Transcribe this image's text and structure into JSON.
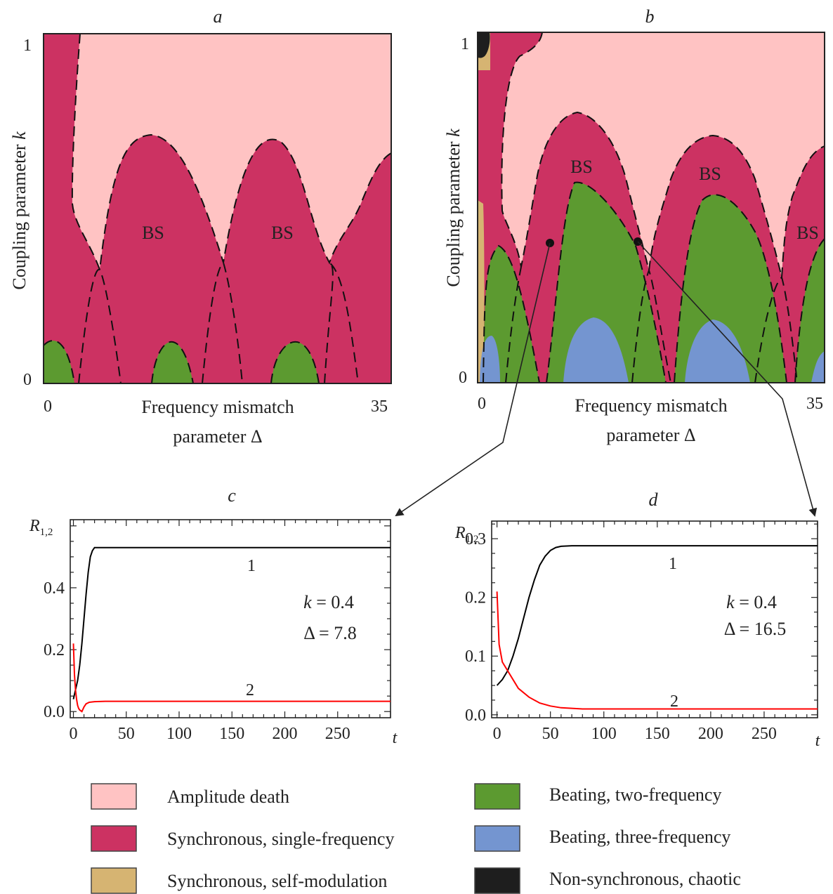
{
  "panels": {
    "a": {
      "letter": "a"
    },
    "b": {
      "letter": "b"
    },
    "c": {
      "letter": "c"
    },
    "d": {
      "letter": "d"
    }
  },
  "chart_data": [
    {
      "type": "heatmap",
      "id": "a",
      "title": "a",
      "xlabel_line1": "Frequency mismatch",
      "xlabel_line2": "parameter Δ",
      "ylabel_text": "Coupling parameter ",
      "ylabel_var": "k",
      "xlim": [
        0,
        35
      ],
      "ylim": [
        0,
        1
      ],
      "x_ticks": [
        "0",
        "35"
      ],
      "y_ticks": [
        "0",
        "1"
      ],
      "labels": [
        "BS",
        "BS"
      ],
      "regions": [
        "Amplitude death",
        "Synchronous, single-frequency",
        "Beating, two-frequency"
      ]
    },
    {
      "type": "heatmap",
      "id": "b",
      "title": "b",
      "xlabel_line1": "Frequency mismatch",
      "xlabel_line2": "parameter Δ",
      "ylabel_text": "Coupling parameter ",
      "ylabel_var": "k",
      "xlim": [
        0,
        35
      ],
      "ylim": [
        0,
        1
      ],
      "x_ticks": [
        "0",
        "35"
      ],
      "y_ticks": [
        "0",
        "1"
      ],
      "labels": [
        "BS",
        "BS",
        "BS"
      ],
      "marked_points": [
        {
          "k": 0.4,
          "delta": 7.8,
          "target": "c"
        },
        {
          "k": 0.4,
          "delta": 16.5,
          "target": "d"
        }
      ],
      "regions": [
        "Amplitude death",
        "Synchronous, single-frequency",
        "Synchronous, self-modulation",
        "Beating, two-frequency",
        "Beating, three-frequency",
        "Non-synchronous, chaotic"
      ]
    },
    {
      "type": "line",
      "id": "c",
      "title": "c",
      "ylabel_main": "R",
      "ylabel_sub": "1,2",
      "xlabel": "t",
      "xlim": [
        -3,
        300
      ],
      "ylim": [
        -0.02,
        0.62
      ],
      "x_ticks": [
        "0",
        "50",
        "100",
        "150",
        "200",
        "250"
      ],
      "y_ticks": [
        "0.0",
        "0.2",
        "0.4"
      ],
      "x_tick_values": [
        0,
        50,
        100,
        150,
        200,
        250
      ],
      "y_tick_values": [
        0.0,
        0.2,
        0.4
      ],
      "params_line1": "k = 0.4",
      "params_line2": "Δ = 7.8",
      "series": [
        {
          "name": "1",
          "color": "#000000",
          "x": [
            0,
            2,
            4,
            6,
            8,
            10,
            12,
            14,
            16,
            18,
            20,
            25,
            30,
            50,
            100,
            150,
            200,
            250,
            300
          ],
          "y": [
            0.04,
            0.07,
            0.1,
            0.15,
            0.22,
            0.3,
            0.38,
            0.45,
            0.5,
            0.52,
            0.53,
            0.53,
            0.53,
            0.53,
            0.53,
            0.53,
            0.53,
            0.53,
            0.53
          ]
        },
        {
          "name": "2",
          "color": "#ff0000",
          "x": [
            0,
            1,
            2,
            3,
            4,
            5,
            6,
            8,
            10,
            12,
            15,
            20,
            30,
            50,
            100,
            200,
            300
          ],
          "y": [
            0.22,
            0.12,
            0.07,
            0.04,
            0.02,
            0.01,
            0.005,
            0.0,
            0.015,
            0.025,
            0.03,
            0.032,
            0.033,
            0.033,
            0.033,
            0.033,
            0.033
          ]
        }
      ]
    },
    {
      "type": "line",
      "id": "d",
      "title": "d",
      "ylabel_main": "R",
      "ylabel_sub": "1,2",
      "xlabel": "t",
      "xlim": [
        -5,
        300
      ],
      "ylim": [
        -0.005,
        0.33
      ],
      "x_ticks": [
        "0",
        "50",
        "100",
        "150",
        "200",
        "250"
      ],
      "y_ticks": [
        "0.0",
        "0.1",
        "0.2",
        "0.3"
      ],
      "x_tick_values": [
        0,
        50,
        100,
        150,
        200,
        250
      ],
      "y_tick_values": [
        0.0,
        0.1,
        0.2,
        0.3
      ],
      "params_line1": "k = 0.4",
      "params_line2": "Δ = 16.5",
      "series": [
        {
          "name": "1",
          "color": "#000000",
          "x": [
            0,
            5,
            10,
            15,
            20,
            25,
            30,
            35,
            40,
            45,
            50,
            55,
            60,
            70,
            80,
            100,
            150,
            200,
            250,
            300
          ],
          "y": [
            0.05,
            0.06,
            0.075,
            0.1,
            0.13,
            0.165,
            0.2,
            0.23,
            0.255,
            0.27,
            0.28,
            0.285,
            0.287,
            0.288,
            0.288,
            0.288,
            0.288,
            0.288,
            0.288,
            0.288
          ]
        },
        {
          "name": "2",
          "color": "#ff0000",
          "x": [
            0,
            2,
            5,
            10,
            15,
            20,
            30,
            40,
            50,
            60,
            80,
            100,
            150,
            200,
            300
          ],
          "y": [
            0.21,
            0.12,
            0.09,
            0.075,
            0.06,
            0.045,
            0.03,
            0.02,
            0.015,
            0.012,
            0.01,
            0.01,
            0.01,
            0.01,
            0.01
          ]
        }
      ]
    }
  ],
  "legend": {
    "items": [
      {
        "label": "Amplitude death",
        "color": "#ffc3c3"
      },
      {
        "label": "Synchronous, single-frequency",
        "color": "#cc3262"
      },
      {
        "label": "Synchronous, self-modulation",
        "color": "#d6b472"
      },
      {
        "label": "Beating, two-frequency",
        "color": "#5c9a30"
      },
      {
        "label": "Beating, three-frequency",
        "color": "#7495d0"
      },
      {
        "label": "Non-synchronous, chaotic",
        "color": "#1e1e1e"
      }
    ]
  },
  "colors": {
    "death": "#ffc3c3",
    "sync": "#cc3262",
    "selfmod": "#d6b472",
    "two_freq": "#5c9a30",
    "three_freq": "#7495d0",
    "chaotic": "#1e1e1e"
  }
}
